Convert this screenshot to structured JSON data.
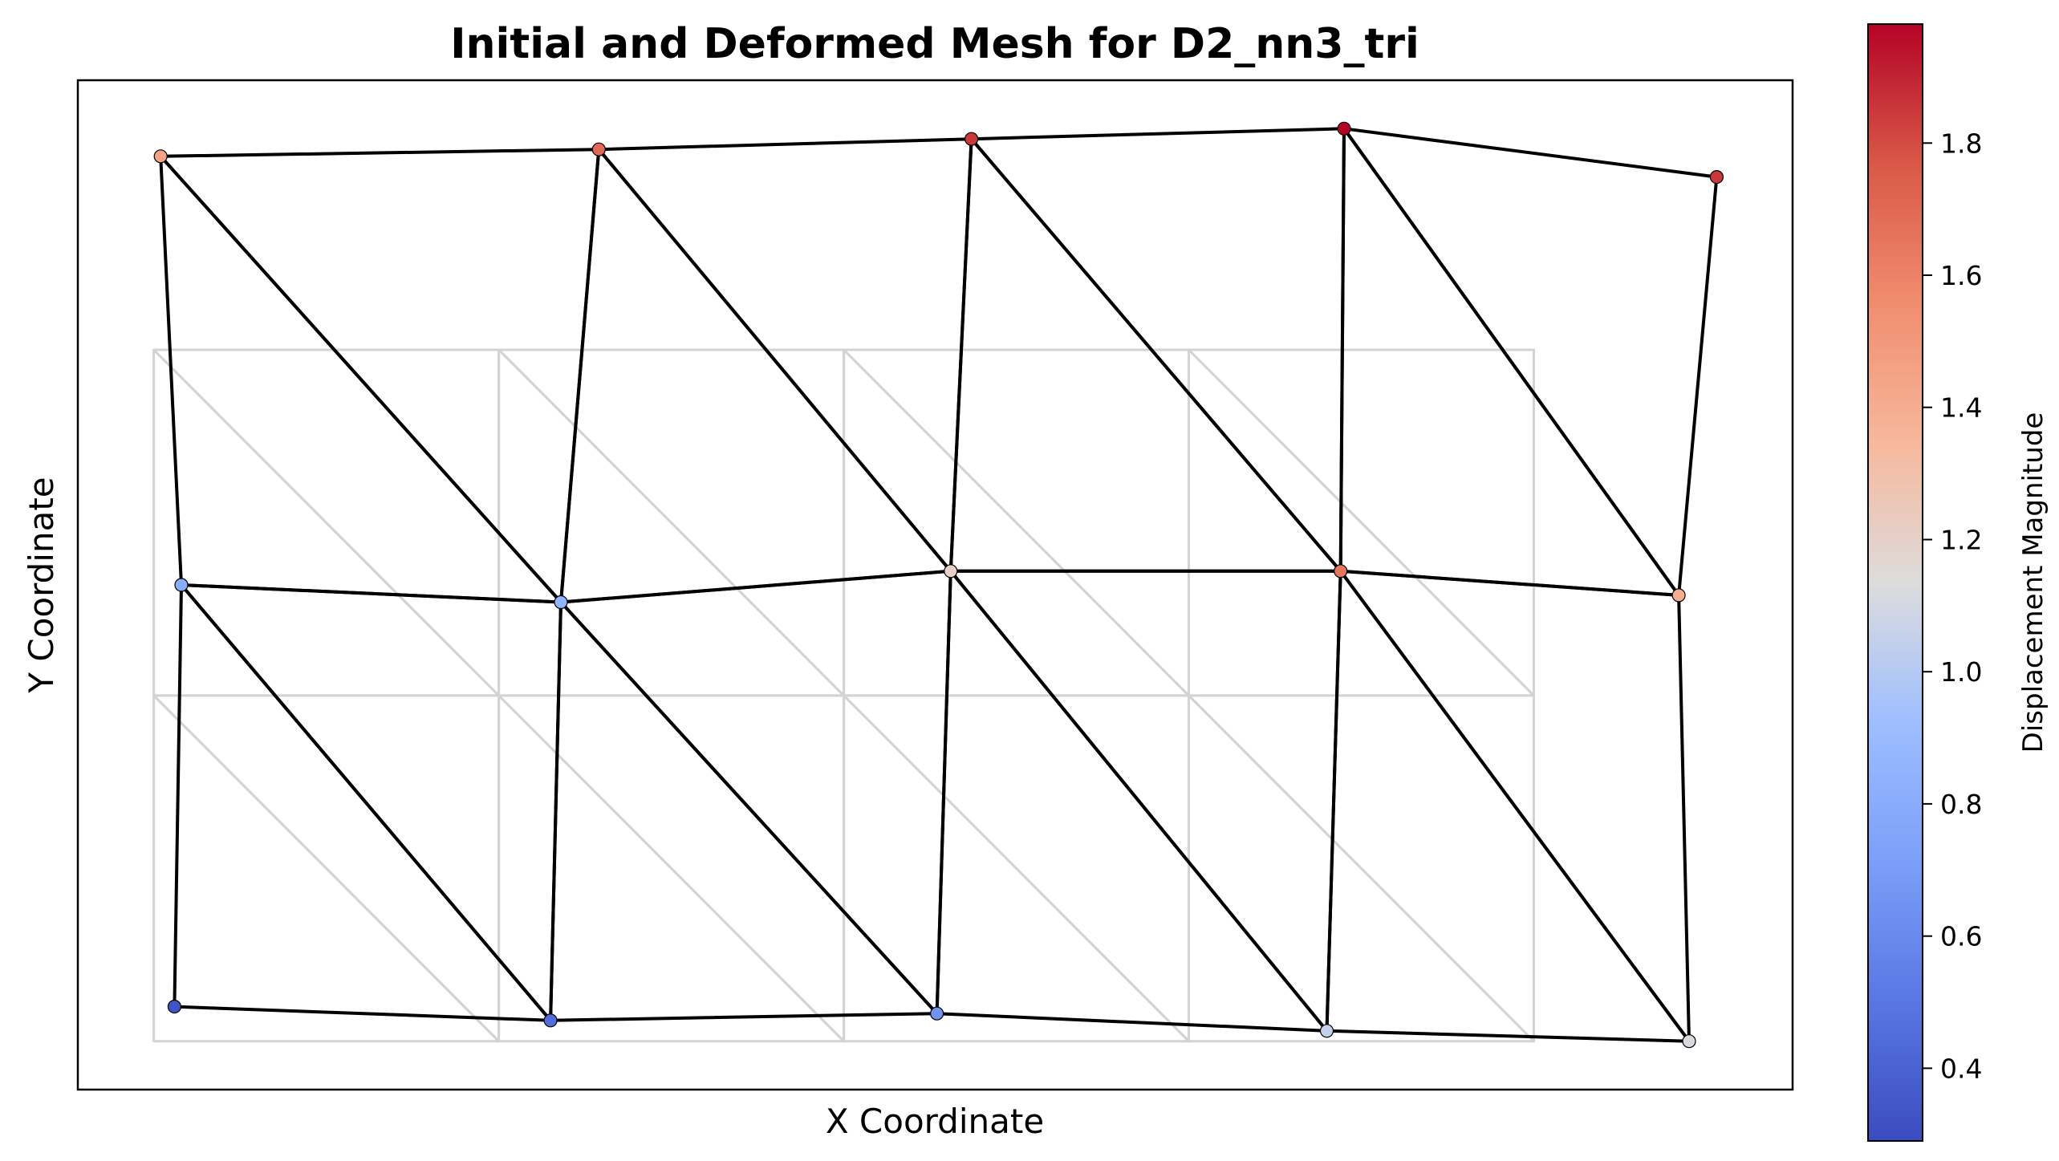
{
  "chart_data": {
    "type": "scatter",
    "title": "Initial and Deformed Mesh for D2_nn3_tri",
    "xlabel": "X Coordinate",
    "ylabel": "Y Coordinate",
    "xlim": [
      -0.22,
      4.75
    ],
    "ylim": [
      -0.14,
      2.78
    ],
    "grid": false,
    "colormap": "coolwarm",
    "colorbar": {
      "label": "Displacement Magnitude",
      "range": [
        0.29,
        1.98
      ],
      "ticks": [
        0.4,
        0.6,
        0.8,
        1.0,
        1.2,
        1.4,
        1.6,
        1.8
      ],
      "tick_labels": [
        "0.4",
        "0.6",
        "0.8",
        "1.0",
        "1.2",
        "1.4",
        "1.6",
        "1.8"
      ]
    },
    "initial_mesh": {
      "color": "#d3d3d3",
      "nodes": [
        [
          0,
          0
        ],
        [
          1,
          0
        ],
        [
          2,
          0
        ],
        [
          3,
          0
        ],
        [
          4,
          0
        ],
        [
          0,
          1
        ],
        [
          1,
          1
        ],
        [
          2,
          1
        ],
        [
          3,
          1
        ],
        [
          4,
          1
        ],
        [
          0,
          2
        ],
        [
          1,
          2
        ],
        [
          2,
          2
        ],
        [
          3,
          2
        ],
        [
          4,
          2
        ]
      ],
      "elements": [
        [
          0,
          1,
          5
        ],
        [
          1,
          6,
          5
        ],
        [
          1,
          2,
          6
        ],
        [
          2,
          7,
          6
        ],
        [
          2,
          3,
          7
        ],
        [
          3,
          8,
          7
        ],
        [
          3,
          4,
          8
        ],
        [
          4,
          9,
          8
        ],
        [
          5,
          6,
          10
        ],
        [
          6,
          11,
          10
        ],
        [
          6,
          7,
          11
        ],
        [
          7,
          12,
          11
        ],
        [
          7,
          8,
          12
        ],
        [
          8,
          13,
          12
        ],
        [
          8,
          9,
          13
        ],
        [
          9,
          14,
          13
        ]
      ]
    },
    "deformed_mesh": {
      "color": "#000000",
      "nodes": [
        {
          "x": 0.06,
          "y": 0.1,
          "magnitude": 0.33
        },
        {
          "x": 1.15,
          "y": 0.06,
          "magnitude": 0.45
        },
        {
          "x": 2.27,
          "y": 0.08,
          "magnitude": 0.65
        },
        {
          "x": 3.4,
          "y": 0.03,
          "magnitude": 1.05
        },
        {
          "x": 4.45,
          "y": 0.0,
          "magnitude": 1.12
        },
        {
          "x": 0.08,
          "y": 1.32,
          "magnitude": 0.8
        },
        {
          "x": 1.18,
          "y": 1.27,
          "magnitude": 0.85
        },
        {
          "x": 2.31,
          "y": 1.36,
          "magnitude": 1.2
        },
        {
          "x": 3.44,
          "y": 1.36,
          "magnitude": 1.65
        },
        {
          "x": 4.42,
          "y": 1.29,
          "magnitude": 1.4
        },
        {
          "x": 0.02,
          "y": 2.56,
          "magnitude": 1.45
        },
        {
          "x": 1.29,
          "y": 2.58,
          "magnitude": 1.7
        },
        {
          "x": 2.37,
          "y": 2.61,
          "magnitude": 1.85
        },
        {
          "x": 3.45,
          "y": 2.64,
          "magnitude": 1.98
        },
        {
          "x": 4.53,
          "y": 2.5,
          "magnitude": 1.85
        }
      ],
      "elements": [
        [
          0,
          1,
          5
        ],
        [
          1,
          6,
          5
        ],
        [
          1,
          2,
          6
        ],
        [
          2,
          7,
          6
        ],
        [
          2,
          3,
          7
        ],
        [
          3,
          8,
          7
        ],
        [
          3,
          4,
          8
        ],
        [
          4,
          9,
          8
        ],
        [
          5,
          6,
          10
        ],
        [
          6,
          11,
          10
        ],
        [
          6,
          7,
          11
        ],
        [
          7,
          12,
          11
        ],
        [
          7,
          8,
          12
        ],
        [
          8,
          13,
          12
        ],
        [
          8,
          9,
          13
        ],
        [
          9,
          14,
          13
        ]
      ]
    }
  }
}
